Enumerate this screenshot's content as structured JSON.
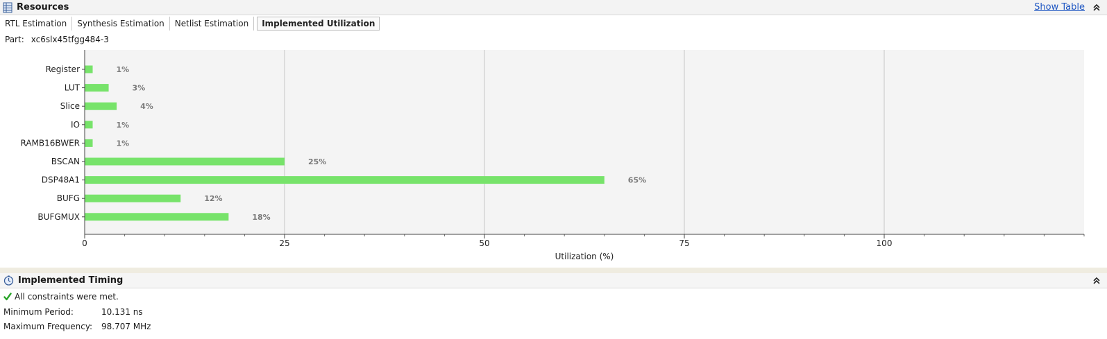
{
  "resources": {
    "title": "Resources",
    "show_table_label": "Show Table",
    "icon": "table-grid-icon"
  },
  "tabs": [
    {
      "label": "RTL Estimation",
      "active": false
    },
    {
      "label": "Synthesis Estimation",
      "active": false
    },
    {
      "label": "Netlist Estimation",
      "active": false
    },
    {
      "label": "Implemented Utilization",
      "active": true
    }
  ],
  "part": {
    "label": "Part:",
    "value": "xc6slx45tfgg484-3"
  },
  "chart_data": {
    "type": "bar",
    "orientation": "horizontal",
    "categories": [
      "Register",
      "LUT",
      "Slice",
      "IO",
      "RAMB16BWER",
      "BSCAN",
      "DSP48A1",
      "BUFG",
      "BUFGMUX"
    ],
    "values": [
      1,
      3,
      4,
      1,
      1,
      25,
      65,
      12,
      18
    ],
    "data_labels": [
      "1%",
      "3%",
      "4%",
      "1%",
      "1%",
      "25%",
      "65%",
      "12%",
      "18%"
    ],
    "xlabel": "Utilization (%)",
    "xlim": [
      0,
      125
    ],
    "xticks": [
      0,
      25,
      50,
      75,
      100
    ],
    "grid": true,
    "bar_color": "#77e36a"
  },
  "timing": {
    "title": "Implemented Timing",
    "icon": "stopwatch-icon",
    "status_icon": "checkmark-icon",
    "status": "All constraints were met.",
    "min_period_label": "Minimum Period:",
    "min_period_value": "10.131 ns",
    "max_freq_label": "Maximum Frequency:",
    "max_freq_value": "98.707 MHz"
  }
}
